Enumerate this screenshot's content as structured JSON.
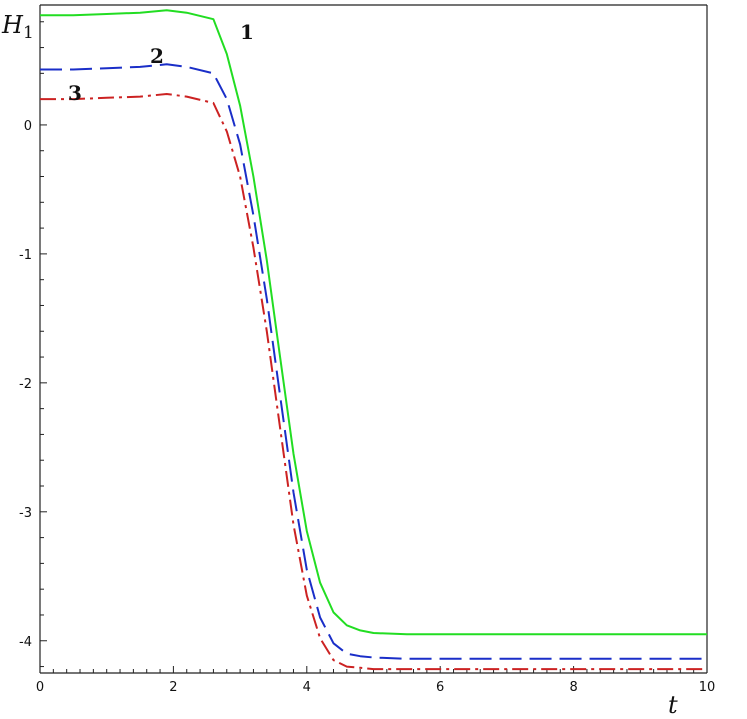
{
  "chart_data": {
    "type": "line",
    "ylabel_main": "H",
    "ylabel_sub": "1",
    "xlabel": "t",
    "xlim": [
      0,
      10
    ],
    "ylim": [
      -4.25,
      0.93
    ],
    "x_ticks": [
      "0",
      "2",
      "4",
      "6",
      "8",
      "10"
    ],
    "y_ticks": [
      "0",
      "-1",
      "-2",
      "-3",
      "-4"
    ],
    "grid": false,
    "series": [
      {
        "name": "1",
        "color": "#22dd22",
        "dash": "solid",
        "x": [
          0,
          0.5,
          1.0,
          1.5,
          1.9,
          2.2,
          2.6,
          2.8,
          3.0,
          3.2,
          3.4,
          3.6,
          3.8,
          4.0,
          4.2,
          4.4,
          4.6,
          4.8,
          5.0,
          5.5,
          6.0,
          8.0,
          10.0
        ],
        "y": [
          0.85,
          0.85,
          0.86,
          0.87,
          0.89,
          0.87,
          0.82,
          0.55,
          0.15,
          -0.4,
          -1.05,
          -1.8,
          -2.55,
          -3.15,
          -3.55,
          -3.78,
          -3.88,
          -3.92,
          -3.94,
          -3.95,
          -3.95,
          -3.95,
          -3.95
        ]
      },
      {
        "name": "2",
        "color": "#1a2ec8",
        "dash": "22,8",
        "x": [
          0,
          0.5,
          1.0,
          1.5,
          1.9,
          2.2,
          2.6,
          2.8,
          3.0,
          3.2,
          3.4,
          3.6,
          3.8,
          4.0,
          4.2,
          4.4,
          4.6,
          4.8,
          5.0,
          5.5,
          6.0,
          8.0,
          10.0
        ],
        "y": [
          0.43,
          0.43,
          0.44,
          0.45,
          0.47,
          0.45,
          0.4,
          0.2,
          -0.15,
          -0.7,
          -1.35,
          -2.1,
          -2.85,
          -3.45,
          -3.82,
          -4.02,
          -4.1,
          -4.12,
          -4.13,
          -4.14,
          -4.14,
          -4.14,
          -4.14
        ]
      },
      {
        "name": "3",
        "color": "#cc2222",
        "dash": "16,5,3,5",
        "x": [
          0,
          0.5,
          1.0,
          1.5,
          1.9,
          2.2,
          2.6,
          2.8,
          3.0,
          3.2,
          3.4,
          3.6,
          3.8,
          4.0,
          4.2,
          4.4,
          4.6,
          4.8,
          5.0,
          5.5,
          6.0,
          8.0,
          10.0
        ],
        "y": [
          0.2,
          0.2,
          0.21,
          0.22,
          0.24,
          0.22,
          0.17,
          -0.05,
          -0.4,
          -0.95,
          -1.6,
          -2.35,
          -3.1,
          -3.65,
          -3.98,
          -4.15,
          -4.2,
          -4.21,
          -4.22,
          -4.22,
          -4.22,
          -4.22,
          -4.22
        ]
      }
    ]
  }
}
